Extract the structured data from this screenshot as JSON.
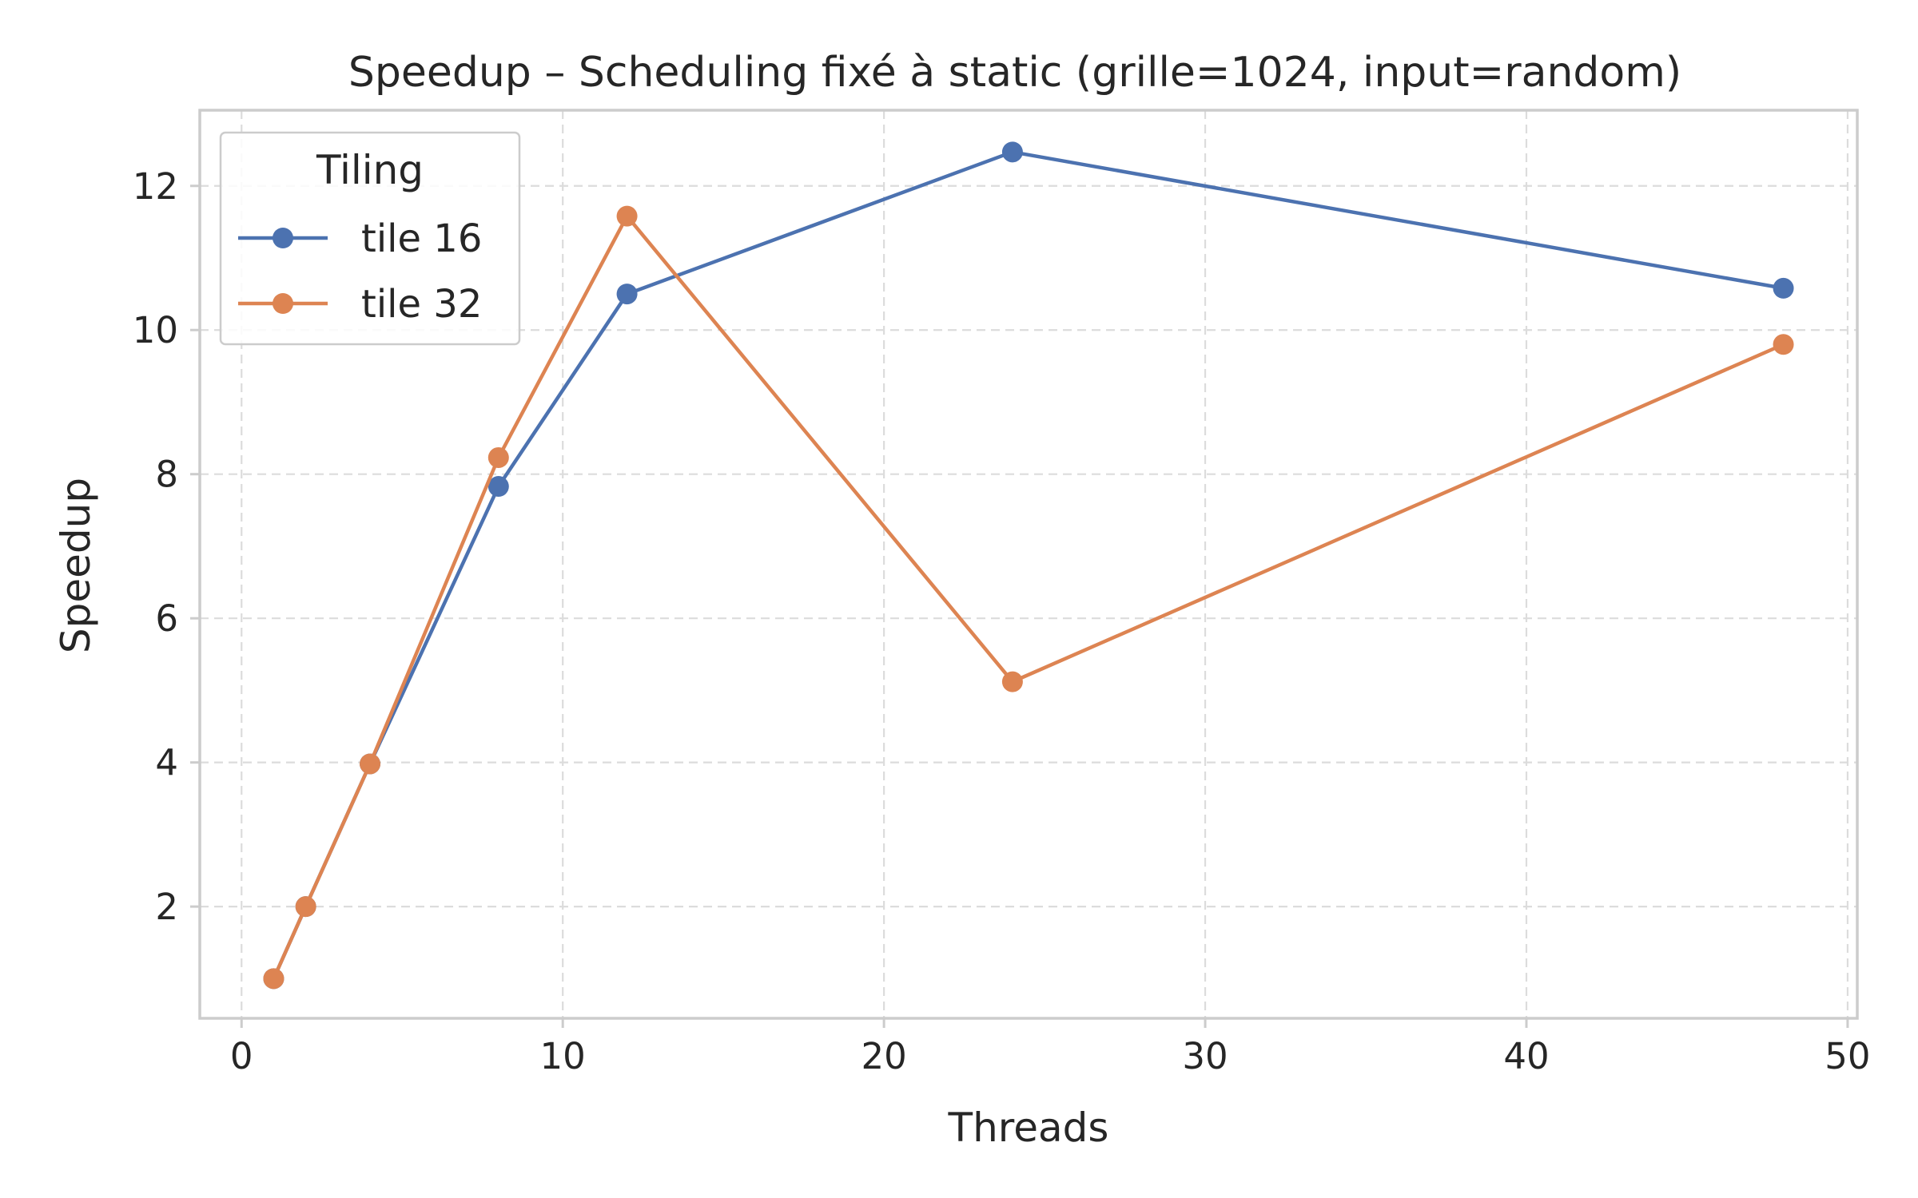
{
  "chart_data": {
    "type": "line",
    "title": "Speedup – Scheduling fixé à static (grille=1024, input=random)",
    "xlabel": "Threads",
    "ylabel": "Speedup",
    "xlim": [
      -1.3,
      50.3
    ],
    "ylim": [
      0.45,
      13.05
    ],
    "xticks": [
      0,
      10,
      20,
      30,
      40,
      50
    ],
    "yticks": [
      2,
      4,
      6,
      8,
      10,
      12
    ],
    "grid": true,
    "legend": {
      "title": "Tiling",
      "placement": "upper-left"
    },
    "x": [
      1,
      2,
      4,
      8,
      12,
      24,
      48
    ],
    "series": [
      {
        "name": "tile 16",
        "color": "#4c72b0",
        "values": [
          1.0,
          2.0,
          3.98,
          7.83,
          10.5,
          12.47,
          10.58
        ]
      },
      {
        "name": "tile 32",
        "color": "#dd8452",
        "values": [
          1.0,
          2.0,
          3.98,
          8.23,
          11.58,
          5.12,
          9.8
        ]
      }
    ]
  }
}
